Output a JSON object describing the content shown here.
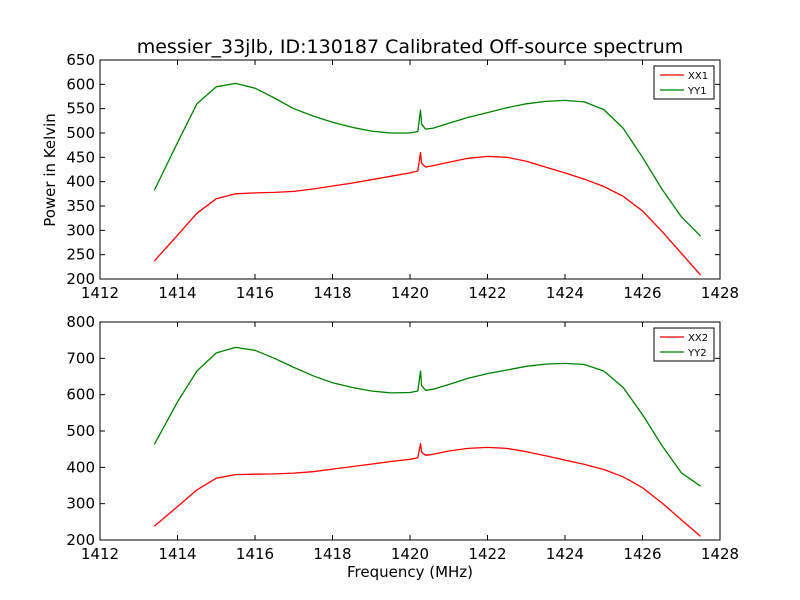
{
  "chart_data": [
    {
      "type": "line",
      "title": "messier_33jlb, ID:130187 Calibrated Off-source spectrum",
      "xlabel": "",
      "ylabel": "Power in Kelvin",
      "xlim": [
        1412,
        1428
      ],
      "ylim": [
        200,
        650
      ],
      "xticks": [
        1412,
        1414,
        1416,
        1418,
        1420,
        1422,
        1424,
        1426,
        1428
      ],
      "yticks": [
        200,
        250,
        300,
        350,
        400,
        450,
        500,
        550,
        600,
        650
      ],
      "legend_position": "upper right",
      "series": [
        {
          "name": "XX1",
          "color": "#ff0000",
          "x": [
            1413.4,
            1414.0,
            1414.5,
            1415.0,
            1415.5,
            1416.0,
            1416.5,
            1417.0,
            1417.5,
            1418.0,
            1418.5,
            1419.0,
            1419.5,
            1420.0,
            1420.2,
            1420.27,
            1420.3,
            1420.4,
            1420.6,
            1421.0,
            1421.5,
            1422.0,
            1422.5,
            1423.0,
            1423.5,
            1424.0,
            1424.5,
            1425.0,
            1425.5,
            1426.0,
            1426.5,
            1427.0,
            1427.5
          ],
          "y": [
            237,
            290,
            335,
            365,
            375,
            377,
            378,
            380,
            385,
            391,
            397,
            404,
            411,
            418,
            422,
            460,
            438,
            430,
            433,
            440,
            448,
            452,
            450,
            442,
            430,
            418,
            405,
            390,
            370,
            340,
            298,
            253,
            208
          ]
        },
        {
          "name": "YY1",
          "color": "#008000",
          "x": [
            1413.4,
            1414.0,
            1414.5,
            1415.0,
            1415.5,
            1416.0,
            1416.5,
            1417.0,
            1417.5,
            1418.0,
            1418.5,
            1419.0,
            1419.5,
            1420.0,
            1420.2,
            1420.27,
            1420.3,
            1420.4,
            1420.6,
            1421.0,
            1421.5,
            1422.0,
            1422.5,
            1423.0,
            1423.5,
            1424.0,
            1424.5,
            1425.0,
            1425.5,
            1426.0,
            1426.5,
            1427.0,
            1427.5
          ],
          "y": [
            382,
            480,
            560,
            595,
            602,
            592,
            572,
            550,
            535,
            522,
            512,
            504,
            500,
            500,
            503,
            547,
            518,
            508,
            510,
            520,
            532,
            542,
            552,
            560,
            565,
            567,
            564,
            548,
            510,
            450,
            385,
            328,
            288
          ]
        }
      ]
    },
    {
      "type": "line",
      "title": "",
      "xlabel": "Frequency (MHz)",
      "ylabel": "",
      "xlim": [
        1412,
        1428
      ],
      "ylim": [
        200,
        800
      ],
      "xticks": [
        1412,
        1414,
        1416,
        1418,
        1420,
        1422,
        1424,
        1426,
        1428
      ],
      "yticks": [
        200,
        300,
        400,
        500,
        600,
        700,
        800
      ],
      "legend_position": "upper right",
      "series": [
        {
          "name": "XX2",
          "color": "#ff0000",
          "x": [
            1413.4,
            1414.0,
            1414.5,
            1415.0,
            1415.5,
            1416.0,
            1416.5,
            1417.0,
            1417.5,
            1418.0,
            1418.5,
            1419.0,
            1419.5,
            1420.0,
            1420.2,
            1420.27,
            1420.3,
            1420.4,
            1420.6,
            1421.0,
            1421.5,
            1422.0,
            1422.5,
            1423.0,
            1423.5,
            1424.0,
            1424.5,
            1425.0,
            1425.5,
            1426.0,
            1426.5,
            1427.0,
            1427.5
          ],
          "y": [
            238,
            292,
            338,
            370,
            380,
            381,
            382,
            384,
            388,
            395,
            402,
            409,
            416,
            422,
            426,
            465,
            442,
            433,
            436,
            445,
            452,
            455,
            452,
            443,
            432,
            420,
            408,
            394,
            374,
            344,
            302,
            256,
            210
          ]
        },
        {
          "name": "YY2",
          "color": "#008000",
          "x": [
            1413.4,
            1414.0,
            1414.5,
            1415.0,
            1415.5,
            1416.0,
            1416.5,
            1417.0,
            1417.5,
            1418.0,
            1418.5,
            1419.0,
            1419.5,
            1420.0,
            1420.2,
            1420.27,
            1420.3,
            1420.4,
            1420.6,
            1421.0,
            1421.5,
            1422.0,
            1422.5,
            1423.0,
            1423.5,
            1424.0,
            1424.5,
            1425.0,
            1425.5,
            1426.0,
            1426.5,
            1427.0,
            1427.5
          ],
          "y": [
            463,
            580,
            665,
            715,
            730,
            722,
            700,
            675,
            652,
            633,
            620,
            610,
            605,
            606,
            610,
            665,
            625,
            612,
            615,
            628,
            645,
            658,
            668,
            678,
            684,
            686,
            683,
            665,
            620,
            545,
            460,
            385,
            348
          ]
        }
      ]
    }
  ]
}
